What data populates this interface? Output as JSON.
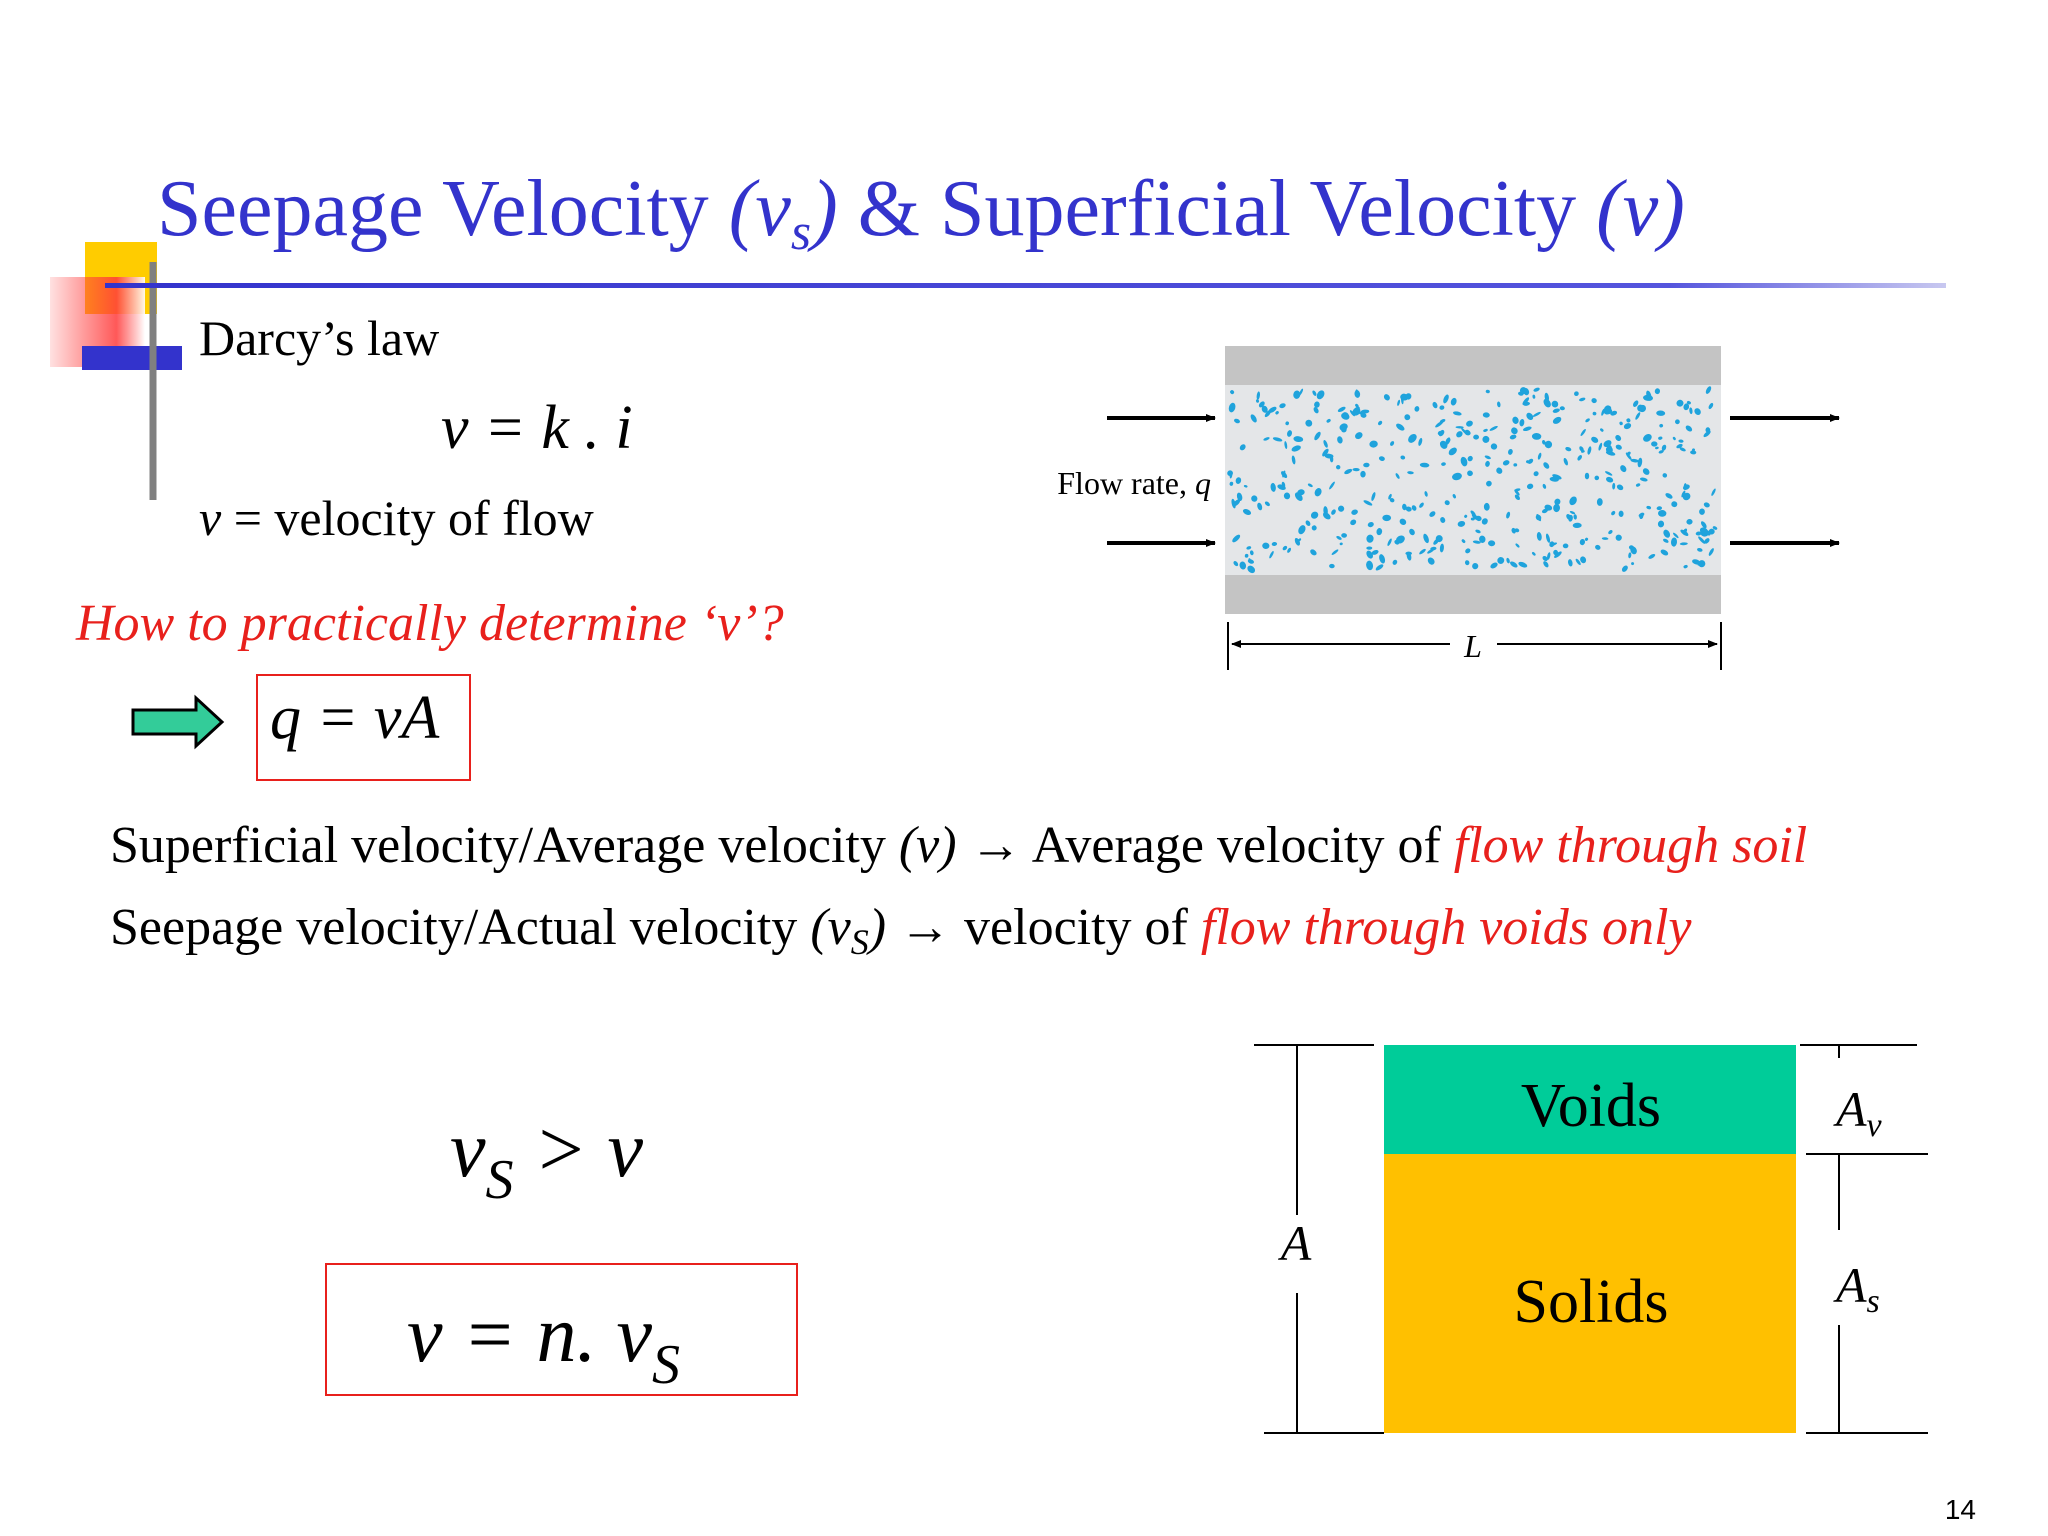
{
  "title": {
    "parts": [
      "Seepage Velocity ",
      "(v",
      "s",
      ")",
      " & Superficial Velocity ",
      "(v)"
    ]
  },
  "darcy": {
    "heading": "Darcy’s law",
    "equation": "v = k . i",
    "definition": {
      "symbol": "v",
      "text": " = velocity of flow"
    }
  },
  "question": "How to practically determine ‘v’?",
  "flow_equation": "q = vA",
  "definitions": [
    {
      "parts": [
        "Superficial velocity/Average velocity ",
        "(v)",
        " → Average velocity of ",
        "flow through soil"
      ]
    },
    {
      "parts": [
        "Seepage velocity/Actual velocity ",
        "(v",
        "S",
        ")",
        " → velocity of ",
        "flow through voids only"
      ]
    }
  ],
  "inequality": {
    "parts": [
      "v",
      "S",
      " > v"
    ]
  },
  "relation": {
    "parts": [
      "v = n. v",
      "S"
    ]
  },
  "flow_figure": {
    "label": "Flow rate, ",
    "label_symbol": "q",
    "length": "L"
  },
  "area_figure": {
    "voids": "Voids",
    "solids": "Solids",
    "total": "A",
    "voids_area": {
      "base": "A",
      "sub": "v"
    },
    "solids_area": {
      "base": "A",
      "sub": "s"
    }
  },
  "page_number": 14
}
